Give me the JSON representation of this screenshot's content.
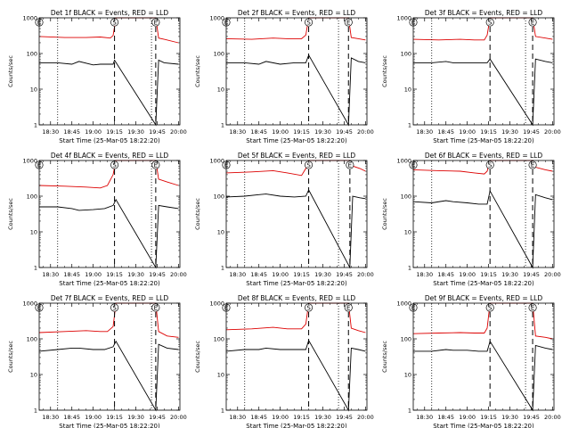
{
  "figure": {
    "background": "#ffffff",
    "colors": {
      "events": "#000000",
      "lld": "#dd0000",
      "axes": "#000000"
    }
  },
  "chart_data": [
    {
      "type": "line",
      "title": "Det 1f BLACK = Events, RED = LLD",
      "xlabel": "Start Time (25-Mar-05 18:22:20)",
      "ylabel": "Counts/sec",
      "y_scale": "log",
      "ylim": [
        1,
        1000
      ],
      "xlim": [
        "18:22",
        "20:01"
      ],
      "x_tick_labels": [
        "18:30",
        "18:45",
        "19:00",
        "19:15",
        "19:30",
        "19:45",
        "20:00"
      ],
      "y_tick_labels": [
        "1",
        "10",
        "100",
        "1000"
      ],
      "markers": [
        {
          "label": "E",
          "time": "18:22"
        },
        {
          "label": "S",
          "time": "19:15"
        },
        {
          "label": "E",
          "time": "19:44"
        }
      ],
      "dotted_lines": [
        "18:35",
        "19:41"
      ],
      "dashed_lines": [
        "19:15",
        "19:44"
      ],
      "series": [
        {
          "x": [
            "18:22",
            "18:40",
            "18:55",
            "19:05",
            "19:12",
            "19:14",
            "19:16",
            "19:44",
            "19:46",
            "19:50",
            "20:00"
          ],
          "values": [
            300,
            280,
            280,
            290,
            270,
            320,
            1000,
            1000,
            270,
            250,
            200
          ],
          "color": "#dd0000"
        },
        {
          "x": [
            "18:22",
            "18:35",
            "18:45",
            "18:50",
            "19:00",
            "19:05",
            "19:14",
            "19:15",
            "19:44",
            "19:46",
            "19:50",
            "20:00"
          ],
          "values": [
            55,
            55,
            50,
            60,
            48,
            50,
            50,
            65,
            1,
            65,
            55,
            50
          ],
          "color": "#000000"
        }
      ]
    },
    {
      "type": "line",
      "title": "Det 2f BLACK = Events, RED = LLD",
      "xlabel": "Start Time (25-Mar-05 18:22:20)",
      "ylabel": "Counts/sec",
      "y_scale": "log",
      "ylim": [
        1,
        1000
      ],
      "xlim": [
        "18:22",
        "20:01"
      ],
      "x_tick_labels": [
        "18:30",
        "18:45",
        "19:00",
        "19:15",
        "19:30",
        "19:45",
        "20:00"
      ],
      "y_tick_labels": [
        "1",
        "10",
        "100",
        "1000"
      ],
      "markers": [
        {
          "label": "E",
          "time": "18:22"
        },
        {
          "label": "S",
          "time": "19:20"
        },
        {
          "label": "E",
          "time": "19:48"
        }
      ],
      "dotted_lines": [
        "18:35",
        "19:41"
      ],
      "dashed_lines": [
        "19:20",
        "19:48"
      ],
      "series": [
        {
          "x": [
            "18:22",
            "18:40",
            "18:55",
            "19:05",
            "19:15",
            "19:18",
            "19:20",
            "19:48",
            "19:50",
            "19:55",
            "20:00"
          ],
          "values": [
            260,
            250,
            270,
            260,
            260,
            330,
            1000,
            1000,
            280,
            260,
            240
          ],
          "color": "#dd0000"
        },
        {
          "x": [
            "18:22",
            "18:35",
            "18:45",
            "18:50",
            "19:00",
            "19:10",
            "19:18",
            "19:20",
            "19:48",
            "19:50",
            "19:55",
            "20:00"
          ],
          "values": [
            55,
            55,
            50,
            60,
            50,
            55,
            55,
            90,
            1,
            75,
            60,
            55
          ],
          "color": "#000000"
        }
      ]
    },
    {
      "type": "line",
      "title": "Det 3f BLACK = Events, RED = LLD",
      "xlabel": "Start Time (25-Mar-05 18:22:20)",
      "ylabel": "Counts/sec",
      "y_scale": "log",
      "ylim": [
        1,
        1000
      ],
      "xlim": [
        "18:22",
        "20:01"
      ],
      "x_tick_labels": [
        "18:30",
        "18:45",
        "19:00",
        "19:15",
        "19:30",
        "19:45",
        "20:00"
      ],
      "y_tick_labels": [
        "1",
        "10",
        "100",
        "1000"
      ],
      "markers": [
        {
          "label": "E",
          "time": "18:22"
        },
        {
          "label": "S",
          "time": "19:16"
        },
        {
          "label": "E",
          "time": "19:46"
        }
      ],
      "dotted_lines": [
        "18:35",
        "19:41"
      ],
      "dashed_lines": [
        "19:16",
        "19:46"
      ],
      "series": [
        {
          "x": [
            "18:22",
            "18:40",
            "18:55",
            "19:05",
            "19:12",
            "19:14",
            "19:16",
            "19:46",
            "19:48",
            "19:55",
            "20:00"
          ],
          "values": [
            250,
            240,
            250,
            240,
            240,
            330,
            1000,
            1000,
            300,
            270,
            250
          ],
          "color": "#dd0000"
        },
        {
          "x": [
            "18:22",
            "18:35",
            "18:45",
            "18:50",
            "19:00",
            "19:08",
            "19:14",
            "19:16",
            "19:46",
            "19:48",
            "19:55",
            "20:00"
          ],
          "values": [
            55,
            55,
            60,
            55,
            55,
            55,
            55,
            70,
            1,
            70,
            60,
            55
          ],
          "color": "#000000"
        }
      ]
    },
    {
      "type": "line",
      "title": "Det 4f BLACK = Events, RED = LLD",
      "xlabel": "Start Time (25-Mar-05 18:22:20)",
      "ylabel": "Counts/sec",
      "y_scale": "log",
      "ylim": [
        1,
        1000
      ],
      "xlim": [
        "18:22",
        "20:01"
      ],
      "x_tick_labels": [
        "18:30",
        "18:45",
        "19:00",
        "19:15",
        "19:30",
        "19:45",
        "20:00"
      ],
      "y_tick_labels": [
        "1",
        "10",
        "100",
        "1000"
      ],
      "markers": [
        {
          "label": "E",
          "time": "18:22"
        },
        {
          "label": "S",
          "time": "19:15"
        },
        {
          "label": "E",
          "time": "19:44"
        }
      ],
      "dotted_lines": [
        "18:35",
        "19:41"
      ],
      "dashed_lines": [
        "19:15",
        "19:44"
      ],
      "series": [
        {
          "x": [
            "18:22",
            "18:40",
            "18:55",
            "19:05",
            "19:10",
            "19:14",
            "19:16",
            "19:44",
            "19:46",
            "19:52",
            "20:00"
          ],
          "values": [
            200,
            190,
            180,
            170,
            200,
            400,
            1000,
            1000,
            300,
            250,
            200
          ],
          "color": "#dd0000"
        },
        {
          "x": [
            "18:22",
            "18:35",
            "18:45",
            "18:50",
            "19:00",
            "19:08",
            "19:14",
            "19:16",
            "19:44",
            "19:46",
            "19:52",
            "20:00"
          ],
          "values": [
            50,
            50,
            45,
            40,
            42,
            45,
            55,
            80,
            1,
            55,
            50,
            45
          ],
          "color": "#000000"
        }
      ]
    },
    {
      "type": "line",
      "title": "Det 5f BLACK = Events, RED = LLD",
      "xlabel": "Start Time (25-Mar-05 18:22:20)",
      "ylabel": "Counts/sec",
      "y_scale": "log",
      "ylim": [
        1,
        1000
      ],
      "xlim": [
        "18:22",
        "20:01"
      ],
      "x_tick_labels": [
        "18:30",
        "18:45",
        "19:00",
        "19:15",
        "19:30",
        "19:45",
        "20:00"
      ],
      "y_tick_labels": [
        "1",
        "10",
        "100",
        "1000"
      ],
      "markers": [
        {
          "label": "E",
          "time": "18:22"
        },
        {
          "label": "S",
          "time": "19:20"
        },
        {
          "label": "E",
          "time": "19:49"
        }
      ],
      "dotted_lines": [
        "18:35",
        "19:41"
      ],
      "dashed_lines": [
        "19:20",
        "19:49"
      ],
      "series": [
        {
          "x": [
            "18:22",
            "18:40",
            "18:55",
            "19:05",
            "19:15",
            "19:18",
            "19:20",
            "19:49",
            "19:51",
            "19:56",
            "20:00"
          ],
          "values": [
            450,
            480,
            520,
            450,
            380,
            600,
            1000,
            1000,
            700,
            600,
            500
          ],
          "color": "#dd0000"
        },
        {
          "x": [
            "18:22",
            "18:35",
            "18:45",
            "18:50",
            "19:00",
            "19:10",
            "19:18",
            "19:20",
            "19:49",
            "19:51",
            "19:56",
            "20:00"
          ],
          "values": [
            95,
            100,
            110,
            115,
            100,
            95,
            100,
            150,
            1,
            100,
            90,
            85
          ],
          "color": "#000000"
        }
      ]
    },
    {
      "type": "line",
      "title": "Det 6f BLACK = Events, RED = LLD",
      "xlabel": "Start Time (25-Mar-05 18:22:20)",
      "ylabel": "Counts/sec",
      "y_scale": "log",
      "ylim": [
        1,
        1000
      ],
      "xlim": [
        "18:22",
        "20:01"
      ],
      "x_tick_labels": [
        "18:30",
        "18:45",
        "19:00",
        "19:15",
        "19:30",
        "19:45",
        "20:00"
      ],
      "y_tick_labels": [
        "1",
        "10",
        "100",
        "1000"
      ],
      "markers": [
        {
          "label": "E",
          "time": "18:22"
        },
        {
          "label": "S",
          "time": "19:16"
        },
        {
          "label": "E",
          "time": "19:46"
        }
      ],
      "dotted_lines": [
        "18:35",
        "19:41"
      ],
      "dashed_lines": [
        "19:16",
        "19:46"
      ],
      "series": [
        {
          "x": [
            "18:22",
            "18:40",
            "18:55",
            "19:05",
            "19:12",
            "19:14",
            "19:16",
            "19:46",
            "19:48",
            "19:55",
            "20:00"
          ],
          "values": [
            550,
            520,
            500,
            450,
            420,
            500,
            1000,
            1000,
            650,
            550,
            500
          ],
          "color": "#dd0000"
        },
        {
          "x": [
            "18:22",
            "18:35",
            "18:45",
            "18:50",
            "19:00",
            "19:08",
            "19:14",
            "19:16",
            "19:46",
            "19:48",
            "19:55",
            "20:00"
          ],
          "values": [
            70,
            65,
            75,
            70,
            65,
            60,
            60,
            140,
            1,
            110,
            90,
            80
          ],
          "color": "#000000"
        }
      ]
    },
    {
      "type": "line",
      "title": "Det 7f BLACK = Events, RED = LLD",
      "xlabel": "Start Time (25-Mar-05 18:22:20)",
      "ylabel": "Counts/sec",
      "y_scale": "log",
      "ylim": [
        1,
        1000
      ],
      "xlim": [
        "18:22",
        "20:01"
      ],
      "x_tick_labels": [
        "18:30",
        "18:45",
        "19:00",
        "19:15",
        "19:30",
        "19:45",
        "20:00"
      ],
      "y_tick_labels": [
        "1",
        "10",
        "100",
        "1000"
      ],
      "markers": [
        {
          "label": "E",
          "time": "18:22"
        },
        {
          "label": "S",
          "time": "19:15"
        },
        {
          "label": "E",
          "time": "19:44"
        }
      ],
      "dotted_lines": [
        "18:35",
        "19:41"
      ],
      "dashed_lines": [
        "19:15",
        "19:44"
      ],
      "series": [
        {
          "x": [
            "18:22",
            "18:40",
            "18:55",
            "19:05",
            "19:10",
            "19:14",
            "19:16",
            "19:44",
            "19:46",
            "19:52",
            "20:00"
          ],
          "values": [
            150,
            160,
            170,
            160,
            160,
            220,
            1000,
            1000,
            160,
            120,
            110
          ],
          "color": "#dd0000"
        },
        {
          "x": [
            "18:22",
            "18:35",
            "18:45",
            "18:50",
            "19:00",
            "19:08",
            "19:14",
            "19:16",
            "19:44",
            "19:46",
            "19:52",
            "20:00"
          ],
          "values": [
            45,
            50,
            55,
            55,
            50,
            50,
            60,
            85,
            1,
            70,
            55,
            50
          ],
          "color": "#000000"
        }
      ]
    },
    {
      "type": "line",
      "title": "Det 8f BLACK = Events, RED = LLD",
      "xlabel": "Start Time (25-Mar-05 18:22:20)",
      "ylabel": "Counts/sec",
      "y_scale": "log",
      "ylim": [
        1,
        1000
      ],
      "xlim": [
        "18:22",
        "20:01"
      ],
      "x_tick_labels": [
        "18:30",
        "18:45",
        "19:00",
        "19:15",
        "19:30",
        "19:45",
        "20:00"
      ],
      "y_tick_labels": [
        "1",
        "10",
        "100",
        "1000"
      ],
      "markers": [
        {
          "label": "E",
          "time": "18:22"
        },
        {
          "label": "S",
          "time": "19:20"
        },
        {
          "label": "E",
          "time": "19:48"
        }
      ],
      "dotted_lines": [
        "18:35",
        "19:41"
      ],
      "dashed_lines": [
        "19:20",
        "19:48"
      ],
      "series": [
        {
          "x": [
            "18:22",
            "18:40",
            "18:55",
            "19:05",
            "19:15",
            "19:18",
            "19:20",
            "19:48",
            "19:50",
            "19:55",
            "20:00"
          ],
          "values": [
            180,
            190,
            210,
            190,
            190,
            260,
            1000,
            1000,
            200,
            170,
            150
          ],
          "color": "#dd0000"
        },
        {
          "x": [
            "18:22",
            "18:35",
            "18:45",
            "18:50",
            "19:00",
            "19:10",
            "19:18",
            "19:20",
            "19:48",
            "19:50",
            "19:55",
            "20:00"
          ],
          "values": [
            45,
            50,
            50,
            55,
            50,
            50,
            50,
            90,
            1,
            55,
            50,
            45
          ],
          "color": "#000000"
        }
      ]
    },
    {
      "type": "line",
      "title": "Det 9f BLACK = Events, RED = LLD",
      "xlabel": "Start Time (25-Mar-05 18:22:20)",
      "ylabel": "Counts/sec",
      "y_scale": "log",
      "ylim": [
        1,
        1000
      ],
      "xlim": [
        "18:22",
        "20:01"
      ],
      "x_tick_labels": [
        "18:30",
        "18:45",
        "19:00",
        "19:15",
        "19:30",
        "19:45",
        "20:00"
      ],
      "y_tick_labels": [
        "1",
        "10",
        "100",
        "1000"
      ],
      "markers": [
        {
          "label": "E",
          "time": "18:22"
        },
        {
          "label": "S",
          "time": "19:16"
        },
        {
          "label": "E",
          "time": "19:46"
        }
      ],
      "dotted_lines": [
        "18:35",
        "19:41"
      ],
      "dashed_lines": [
        "19:16",
        "19:46"
      ],
      "series": [
        {
          "x": [
            "18:22",
            "18:40",
            "18:55",
            "19:05",
            "19:12",
            "19:14",
            "19:16",
            "19:46",
            "19:48",
            "19:55",
            "20:00"
          ],
          "values": [
            140,
            145,
            150,
            145,
            145,
            200,
            1000,
            1000,
            120,
            110,
            100
          ],
          "color": "#dd0000"
        },
        {
          "x": [
            "18:22",
            "18:35",
            "18:45",
            "18:50",
            "19:00",
            "19:08",
            "19:14",
            "19:16",
            "19:46",
            "19:48",
            "19:55",
            "20:00"
          ],
          "values": [
            45,
            45,
            50,
            48,
            48,
            45,
            45,
            85,
            1,
            65,
            55,
            50
          ],
          "color": "#000000"
        }
      ]
    }
  ]
}
